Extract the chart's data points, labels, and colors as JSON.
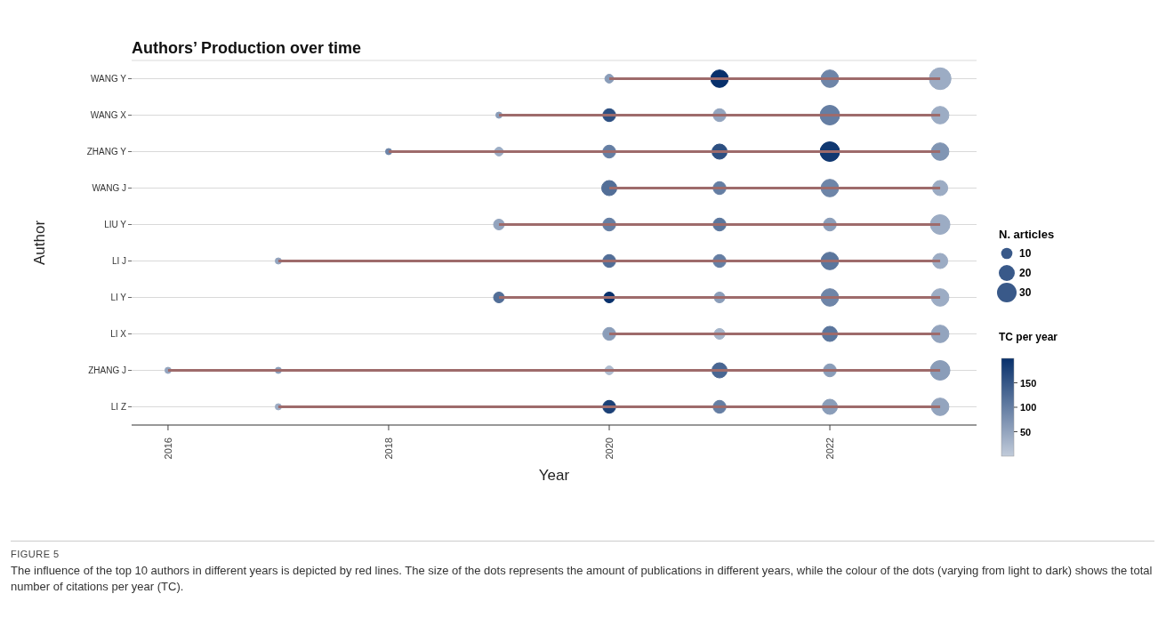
{
  "chart_data": {
    "type": "bubble",
    "orientation": "horizontal",
    "title": "Authors’ Production over time",
    "xlabel": "Year",
    "ylabel": "Author",
    "categories": [
      "WANG Y",
      "WANG X",
      "ZHANG Y",
      "WANG J",
      "LIU Y",
      "LI J",
      "LI Y",
      "LI X",
      "ZHANG J",
      "LI Z"
    ],
    "grid": "y",
    "color": "#08306b",
    "legend_title": "N. articles",
    "size_legend": [
      10,
      20,
      30
    ],
    "clabel": "TC per year",
    "cticks": [
      50,
      100,
      150
    ],
    "clim": [
      0,
      200
    ],
    "xlim": [
      2015.67,
      2023.33
    ],
    "xticks": [
      2016,
      2018,
      2020,
      2022
    ],
    "series": [
      {
        "type": "bar",
        "color": "#9e6b6b",
        "base": [
          2020,
          2019,
          2018,
          2020,
          2019,
          2017,
          2019,
          2020,
          2016,
          2017
        ],
        "values": [
          3,
          4,
          5,
          3,
          4,
          6,
          4,
          3,
          7,
          6
        ]
      },
      {
        "colors": [
          null,
          null,
          null,
          null,
          null,
          null,
          null,
          null,
          "#93a4be",
          null
        ],
        "values": [
          null,
          null,
          null,
          null,
          null,
          null,
          null,
          null,
          2016,
          null
        ],
        "sizes": [
          null,
          null,
          null,
          null,
          null,
          null,
          null,
          null,
          3,
          null
        ],
        "cvalues": [
          null,
          null,
          null,
          null,
          null,
          null,
          null,
          null,
          50,
          null
        ]
      },
      {
        "colors": [
          null,
          null,
          null,
          null,
          null,
          "#93a4be",
          null,
          null,
          "#8a9db9",
          "#9cacc4"
        ],
        "values": [
          null,
          null,
          null,
          null,
          null,
          2017,
          null,
          null,
          2017,
          2017
        ],
        "sizes": [
          null,
          null,
          null,
          null,
          null,
          3,
          null,
          null,
          3,
          3
        ],
        "cvalues": [
          null,
          null,
          null,
          null,
          null,
          50,
          null,
          null,
          60,
          40
        ]
      },
      {
        "colors": [
          null,
          null,
          "#6e85a8",
          null,
          null,
          null,
          null,
          null,
          null,
          null
        ],
        "values": [
          null,
          null,
          2018,
          null,
          null,
          null,
          null,
          null,
          null,
          null
        ],
        "sizes": [
          null,
          null,
          3,
          null,
          null,
          null,
          null,
          null,
          null,
          null
        ],
        "cvalues": [
          null,
          null,
          90,
          null,
          null,
          null,
          null,
          null,
          null,
          null
        ]
      },
      {
        "colors": [
          null,
          "#8a9db9",
          "#9cacc4",
          null,
          "#93a4be",
          null,
          "#526e97",
          null,
          null,
          null
        ],
        "values": [
          null,
          2019,
          2019,
          null,
          2019,
          null,
          2019,
          null,
          null,
          null
        ],
        "sizes": [
          null,
          3,
          6,
          null,
          9,
          null,
          9,
          null,
          null,
          null
        ],
        "cvalues": [
          null,
          60,
          40,
          null,
          50,
          null,
          120,
          null,
          null,
          null
        ]
      },
      {
        "colors": [
          "#8a9db9",
          "#2d4f81",
          "#657ea3",
          "#526e97",
          "#657ea3",
          "#526e97",
          "#08306b",
          "#8a9db9",
          "#afbccf",
          "#1b4076"
        ],
        "values": [
          2020,
          2020,
          2020,
          2020,
          2020,
          2020,
          2020,
          2020,
          2020,
          2020
        ],
        "sizes": [
          6,
          13,
          13,
          18,
          13,
          13,
          9,
          13,
          6,
          13
        ],
        "cvalues": [
          60,
          160,
          100,
          120,
          100,
          120,
          200,
          60,
          20,
          180
        ]
      },
      {
        "colors": [
          "#08306b",
          "#93a4be",
          "#2d4f81",
          "#657ea3",
          "#5b769d",
          "#657ea3",
          "#8a9db9",
          "#a5b4c9",
          "#496692",
          "#657ea3"
        ],
        "values": [
          2021,
          2021,
          2021,
          2021,
          2021,
          2021,
          2021,
          2021,
          2021,
          2021
        ],
        "sizes": [
          24,
          13,
          18,
          13,
          13,
          13,
          9,
          9,
          18,
          13
        ],
        "cvalues": [
          200,
          50,
          160,
          100,
          110,
          100,
          60,
          30,
          130,
          100
        ]
      },
      {
        "colors": [
          "#6e85a8",
          "#657ea3",
          "#113871",
          "#6e85a8",
          "#8a9db9",
          "#5b769d",
          "#6e85a8",
          "#5b769d",
          "#8a9db9",
          "#8a9db9"
        ],
        "values": [
          2022,
          2022,
          2022,
          2022,
          2022,
          2022,
          2022,
          2022,
          2022,
          2022
        ],
        "sizes": [
          24,
          30,
          30,
          24,
          13,
          24,
          24,
          18,
          13,
          18
        ],
        "cvalues": [
          90,
          100,
          190,
          90,
          60,
          110,
          90,
          110,
          60,
          60
        ]
      },
      {
        "colors": [
          "#9cacc4",
          "#9cacc4",
          "#8095b3",
          "#9cacc4",
          "#9cacc4",
          "#9cacc4",
          "#9cacc4",
          "#93a4be",
          "#8a9db9",
          "#93a4be"
        ],
        "values": [
          2023,
          2023,
          2023,
          2023,
          2023,
          2023,
          2023,
          2023,
          2023,
          2023
        ],
        "sizes": [
          37,
          24,
          24,
          18,
          30,
          18,
          24,
          24,
          30,
          24
        ],
        "cvalues": [
          40,
          40,
          70,
          40,
          40,
          40,
          40,
          50,
          60,
          50
        ]
      }
    ],
    "annotations": [
      "FIGURE 5",
      "The influence of the top 10 authors in different years is depicted by red lines. The size of the dots represents the amount of publications in different years, while the colour of the dots (varying from light to dark) shows the total number of citations per year (TC)."
    ]
  }
}
